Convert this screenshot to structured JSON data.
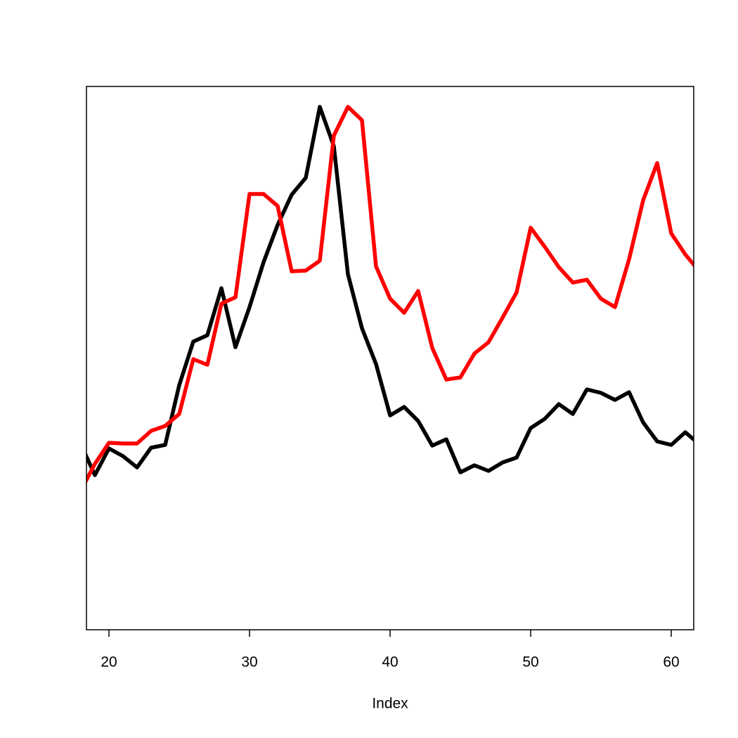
{
  "chart_data": {
    "type": "line",
    "xlabel": "Index",
    "x": [
      18,
      19,
      20,
      21,
      22,
      23,
      24,
      25,
      26,
      27,
      28,
      29,
      30,
      31,
      32,
      33,
      34,
      35,
      36,
      37,
      38,
      39,
      40,
      41,
      42,
      43,
      44,
      45,
      46,
      47,
      48,
      49,
      50,
      51,
      52,
      53,
      54,
      55,
      56,
      57,
      58,
      59,
      60,
      61,
      62
    ],
    "series": [
      {
        "color": "#000000",
        "values": [
          264,
          220,
          258,
          247,
          231,
          259,
          263,
          348,
          410,
          419,
          486,
          402,
          459,
          523,
          576,
          619,
          643,
          744,
          688,
          506,
          429,
          378,
          305,
          317,
          297,
          262,
          271,
          224,
          234,
          226,
          238,
          245,
          287,
          300,
          321,
          307,
          342,
          337,
          327,
          338,
          295,
          268,
          263,
          281,
          264
        ]
      },
      {
        "color": "#ff0000",
        "values": [
          198,
          236,
          266,
          265,
          265,
          283,
          290,
          307,
          385,
          377,
          464,
          473,
          620,
          620,
          603,
          510,
          511,
          525,
          703,
          744,
          725,
          517,
          471,
          451,
          482,
          401,
          356,
          359,
          393,
          409,
          444,
          480,
          572,
          545,
          516,
          494,
          498,
          471,
          459,
          527,
          611,
          664,
          564,
          534,
          510
        ]
      }
    ],
    "xlim": [
      18.4,
      61.6
    ],
    "ylim": [
      0,
      773
    ],
    "xticks": [
      20,
      30,
      40,
      50,
      60
    ]
  }
}
